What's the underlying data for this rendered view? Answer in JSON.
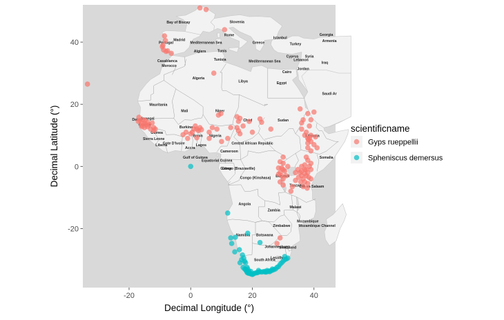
{
  "chart_data": {
    "type": "scatter",
    "title": "",
    "xlabel": "Decimal Longitude (°)",
    "ylabel": "Decimal Latitude (°)",
    "xlim": [
      -35,
      47
    ],
    "ylim": [
      -39,
      52
    ],
    "x_ticks": [
      -20,
      0,
      20,
      40
    ],
    "y_ticks": [
      -20,
      0,
      20,
      40
    ],
    "x_tick_labels": [
      "-20",
      "0",
      "20",
      "40"
    ],
    "y_tick_labels": [
      "-20",
      "0",
      "20",
      "40"
    ],
    "background": "basemap",
    "legend": {
      "title": "scientificname",
      "position": "right",
      "entries": [
        {
          "name": "Gyps rueppellii",
          "color": "#F8766D"
        },
        {
          "name": "Spheniscus demersus",
          "color": "#00BFC4"
        }
      ]
    },
    "series": [
      {
        "name": "Gyps rueppellii",
        "color": "#F8766D",
        "points": [
          [
            -8.5,
            42
          ],
          [
            -8.2,
            40.5
          ],
          [
            -9,
            39
          ],
          [
            -9.2,
            38.5
          ],
          [
            -8.8,
            37.5
          ],
          [
            -8,
            37
          ],
          [
            -7.5,
            37.2
          ],
          [
            -6.3,
            36.4
          ],
          [
            3,
            51
          ],
          [
            5,
            50.5
          ],
          [
            11,
            44
          ],
          [
            7.5,
            30
          ],
          [
            -33.5,
            26.5
          ],
          [
            -17,
            14.5
          ],
          [
            -16.8,
            15.8
          ],
          [
            -16.5,
            14.8
          ],
          [
            -16,
            14
          ],
          [
            -16,
            13.2
          ],
          [
            -15.5,
            15
          ],
          [
            -15,
            13.8
          ],
          [
            -15,
            12.5
          ],
          [
            -14.8,
            14.8
          ],
          [
            -14.5,
            13.5
          ],
          [
            -14,
            12.8
          ],
          [
            -13.5,
            13.4
          ],
          [
            -13,
            12
          ],
          [
            -12.5,
            14
          ],
          [
            -12,
            11.5
          ],
          [
            -12,
            12.5
          ],
          [
            -11.5,
            12
          ],
          [
            -14,
            14.2
          ],
          [
            -15.8,
            12.8
          ],
          [
            -2.5,
            10.2
          ],
          [
            -1.5,
            11
          ],
          [
            0.5,
            11
          ],
          [
            1,
            12
          ],
          [
            1.5,
            13
          ],
          [
            2,
            12
          ],
          [
            2.5,
            11.5
          ],
          [
            3,
            12.5
          ],
          [
            3.5,
            11.8
          ],
          [
            0,
            10.5
          ],
          [
            -1,
            9
          ],
          [
            2,
            9.2
          ],
          [
            6,
            11
          ],
          [
            7,
            12.5
          ],
          [
            8.5,
            12
          ],
          [
            9,
            16.5
          ],
          [
            9.8,
            17
          ],
          [
            6,
            9
          ],
          [
            15.5,
            14.5
          ],
          [
            16,
            15.5
          ],
          [
            15,
            16
          ],
          [
            17,
            13
          ],
          [
            15,
            12.5
          ],
          [
            16,
            10.5
          ],
          [
            20,
            11
          ],
          [
            19,
            14.5
          ],
          [
            23,
            14.2
          ],
          [
            22.5,
            15.3
          ],
          [
            15.5,
            11.5
          ],
          [
            13,
            12.5
          ],
          [
            10,
            8
          ],
          [
            12,
            9
          ],
          [
            26,
            12
          ],
          [
            35.5,
            18.5
          ],
          [
            38,
            17
          ],
          [
            40,
            17.5
          ],
          [
            39,
            15
          ],
          [
            36,
            14
          ],
          [
            36,
            12
          ],
          [
            37,
            10
          ],
          [
            38,
            9
          ],
          [
            39,
            8
          ],
          [
            40,
            7
          ],
          [
            41,
            6
          ],
          [
            38,
            6
          ],
          [
            39,
            10
          ],
          [
            38.2,
            8.6
          ],
          [
            37.5,
            11
          ],
          [
            38.5,
            13
          ],
          [
            38.6,
            9.1
          ],
          [
            38,
            7.5
          ],
          [
            39,
            5
          ],
          [
            36.5,
            15
          ],
          [
            40.5,
            9.5
          ],
          [
            37.5,
            3
          ],
          [
            38,
            2
          ],
          [
            39,
            1
          ],
          [
            37,
            0.5
          ],
          [
            36,
            0
          ],
          [
            37,
            -1
          ],
          [
            38,
            -2
          ],
          [
            37.5,
            -3
          ],
          [
            36.5,
            -4
          ],
          [
            35.5,
            -2
          ],
          [
            34.8,
            -1
          ],
          [
            36,
            -1.5
          ],
          [
            37,
            -2.3
          ],
          [
            38.5,
            0
          ],
          [
            39,
            -1
          ],
          [
            36,
            -3
          ],
          [
            37.5,
            -1
          ],
          [
            38.3,
            -3.5
          ],
          [
            39,
            -4
          ],
          [
            37,
            -5
          ],
          [
            36.5,
            -6.5
          ],
          [
            37.8,
            -7
          ],
          [
            38,
            -5.5
          ],
          [
            35.7,
            -5
          ],
          [
            34,
            -2
          ],
          [
            35,
            -3.5
          ],
          [
            29,
            -2
          ],
          [
            30,
            -1
          ],
          [
            29.5,
            -3
          ],
          [
            30,
            -4
          ],
          [
            29,
            -5
          ],
          [
            28.5,
            -0.5
          ],
          [
            30,
            1
          ],
          [
            31,
            -3
          ],
          [
            29,
            1.5
          ],
          [
            30.5,
            -1.5
          ],
          [
            30,
            3
          ],
          [
            28.5,
            -2.5
          ],
          [
            29.5,
            -0.5
          ],
          [
            31.5,
            0
          ],
          [
            30,
            -6
          ],
          [
            34,
            -4.5
          ],
          [
            32.5,
            -8
          ],
          [
            33,
            -6.5
          ],
          [
            28,
            -24.8
          ],
          [
            29,
            -23
          ]
        ]
      },
      {
        "name": "Spheniscus demersus",
        "color": "#00BFC4",
        "points": [
          [
            0,
            0
          ],
          [
            12,
            -15
          ],
          [
            18.5,
            -21.5
          ],
          [
            13,
            -23
          ],
          [
            14.5,
            -22.8
          ],
          [
            13.3,
            -24.8
          ],
          [
            14.3,
            -27.5
          ],
          [
            15.8,
            -26.8
          ],
          [
            22.5,
            -24.5
          ],
          [
            31.5,
            -29.5
          ],
          [
            30.5,
            -29
          ],
          [
            16,
            -31
          ],
          [
            17,
            -32.5
          ],
          [
            17.5,
            -33
          ],
          [
            18,
            -33.5
          ],
          [
            18.5,
            -34
          ],
          [
            19,
            -34.3
          ],
          [
            19.5,
            -34.6
          ],
          [
            20,
            -34.8
          ],
          [
            18.2,
            -33.9
          ],
          [
            18.4,
            -34.2
          ],
          [
            18.8,
            -34.4
          ],
          [
            20.5,
            -34.5
          ],
          [
            21,
            -34.3
          ],
          [
            21.5,
            -34.2
          ],
          [
            22,
            -34
          ],
          [
            22.5,
            -33.9
          ],
          [
            23,
            -34
          ],
          [
            23.5,
            -33.9
          ],
          [
            24,
            -33.8
          ],
          [
            24.5,
            -34
          ],
          [
            25,
            -33.8
          ],
          [
            25.5,
            -33.7
          ],
          [
            26,
            -33.6
          ],
          [
            26.5,
            -33.4
          ],
          [
            27,
            -33.2
          ],
          [
            27.5,
            -33
          ],
          [
            28,
            -32.5
          ],
          [
            28.5,
            -32.2
          ],
          [
            29,
            -31.5
          ],
          [
            29.5,
            -31
          ],
          [
            30,
            -30.5
          ],
          [
            30.5,
            -30
          ],
          [
            31,
            -29.8
          ],
          [
            18.3,
            -32.5
          ],
          [
            17.8,
            -31
          ],
          [
            17.2,
            -29.5
          ],
          [
            16.8,
            -28.5
          ],
          [
            18.5,
            -33
          ],
          [
            19.5,
            -33.8
          ],
          [
            22,
            -33.5
          ],
          [
            24.8,
            -33.5
          ],
          [
            26.5,
            -33
          ],
          [
            17.8,
            -33.2
          ],
          [
            18.6,
            -34.1
          ],
          [
            18.9,
            -33.7
          ],
          [
            19.3,
            -34.4
          ],
          [
            20.2,
            -34.6
          ],
          [
            21.8,
            -34.1
          ],
          [
            24.2,
            -34
          ],
          [
            25.6,
            -33.9
          ],
          [
            16.5,
            -30
          ],
          [
            17.5,
            -30.5
          ]
        ]
      }
    ],
    "map_labels": [
      {
        "text": "Bay of Biscay",
        "lon": -4,
        "lat": 46
      },
      {
        "text": "Slovenia",
        "lon": 15,
        "lat": 46.1
      },
      {
        "text": "Georgia",
        "lon": 44,
        "lat": 42
      },
      {
        "text": "Portugal",
        "lon": -8,
        "lat": 39.5
      },
      {
        "text": "Madrid",
        "lon": -3.7,
        "lat": 40.4
      },
      {
        "text": "Mediterranean Sea",
        "lon": 5,
        "lat": 39.5
      },
      {
        "text": "Rome",
        "lon": 12.5,
        "lat": 41.9
      },
      {
        "text": "Greece",
        "lon": 22,
        "lat": 39.5
      },
      {
        "text": "Istanbul",
        "lon": 29,
        "lat": 41
      },
      {
        "text": "Armenia",
        "lon": 45,
        "lat": 40
      },
      {
        "text": "Turkey",
        "lon": 34,
        "lat": 39
      },
      {
        "text": "Algiers",
        "lon": 3,
        "lat": 36.7
      },
      {
        "text": "Tunis",
        "lon": 10.2,
        "lat": 36.8
      },
      {
        "text": "Casablanca",
        "lon": -7.6,
        "lat": 33.6
      },
      {
        "text": "Morocco",
        "lon": -7,
        "lat": 32
      },
      {
        "text": "Tunisia",
        "lon": 9.5,
        "lat": 34
      },
      {
        "text": "Mediterranean Sea",
        "lon": 24,
        "lat": 33.5
      },
      {
        "text": "Cyprus",
        "lon": 33,
        "lat": 35
      },
      {
        "text": "Syria",
        "lon": 38.5,
        "lat": 35
      },
      {
        "text": "Iraq",
        "lon": 43.5,
        "lat": 33
      },
      {
        "text": "Lebanon",
        "lon": 35.8,
        "lat": 33.9
      },
      {
        "text": "Jordan",
        "lon": 36.5,
        "lat": 31
      },
      {
        "text": "Cairo",
        "lon": 31.2,
        "lat": 30
      },
      {
        "text": "Algeria",
        "lon": 2.5,
        "lat": 28
      },
      {
        "text": "Libya",
        "lon": 17,
        "lat": 27
      },
      {
        "text": "Egypt",
        "lon": 29.5,
        "lat": 26.5
      },
      {
        "text": "Saudi Ar",
        "lon": 45,
        "lat": 23
      },
      {
        "text": "Mauritania",
        "lon": -10.5,
        "lat": 19.5
      },
      {
        "text": "Mali",
        "lon": -2,
        "lat": 17.5
      },
      {
        "text": "Niger",
        "lon": 9.5,
        "lat": 17.5
      },
      {
        "text": "Chad",
        "lon": 18.5,
        "lat": 14.5
      },
      {
        "text": "Sudan",
        "lon": 30,
        "lat": 14.5
      },
      {
        "text": "Dakar",
        "lon": -17.4,
        "lat": 14.7
      },
      {
        "text": "Senegal",
        "lon": -14,
        "lat": 15
      },
      {
        "text": "Guinea",
        "lon": -15,
        "lat": 13
      },
      {
        "text": "Guinea",
        "lon": -11,
        "lat": 10.5
      },
      {
        "text": "Sierra Leone",
        "lon": -12,
        "lat": 8.5
      },
      {
        "text": "Liberia",
        "lon": -9.5,
        "lat": 6.5
      },
      {
        "text": "Cote D'Ivoire",
        "lon": -5.5,
        "lat": 7
      },
      {
        "text": "Burkina",
        "lon": -1.5,
        "lat": 12.3
      },
      {
        "text": "Benin",
        "lon": 2.3,
        "lat": 9.5
      },
      {
        "text": "Lagos",
        "lon": 3.4,
        "lat": 6.5
      },
      {
        "text": "Nigeria",
        "lon": 8,
        "lat": 9.5
      },
      {
        "text": "Accra",
        "lon": -0.2,
        "lat": 5.6
      },
      {
        "text": "Gulf of Guinea",
        "lon": 1.5,
        "lat": 2.5
      },
      {
        "text": "Cameroon",
        "lon": 12.5,
        "lat": 4.5
      },
      {
        "text": "Central African Republic",
        "lon": 20,
        "lat": 7
      },
      {
        "text": "Ethiopia",
        "lon": 39.5,
        "lat": 9.5
      },
      {
        "text": "Somalia",
        "lon": 44,
        "lat": 2.5
      },
      {
        "text": "Equatorial Guinea",
        "lon": 8.5,
        "lat": 1.5
      },
      {
        "text": "Gabon",
        "lon": 11.5,
        "lat": -1
      },
      {
        "text": "Congo (Brazzaville)",
        "lon": 15.5,
        "lat": -1
      },
      {
        "text": "Congo (Kinshasa)",
        "lon": 21,
        "lat": -4
      },
      {
        "text": "Burundi",
        "lon": 29.8,
        "lat": -3.5
      },
      {
        "text": "Tanzania",
        "lon": 34.5,
        "lat": -6.5
      },
      {
        "text": "Dar es Salaam",
        "lon": 39.3,
        "lat": -6.8
      },
      {
        "text": "Angola",
        "lon": 17.5,
        "lat": -12.5
      },
      {
        "text": "Zambia",
        "lon": 27,
        "lat": -14.5
      },
      {
        "text": "Malawi",
        "lon": 34,
        "lat": -13.5
      },
      {
        "text": "Mozambique",
        "lon": 38,
        "lat": -18
      },
      {
        "text": "Mozambique Channel",
        "lon": 41,
        "lat": -19.5
      },
      {
        "text": "Zimbabwe",
        "lon": 29.5,
        "lat": -19.5
      },
      {
        "text": "Namibia",
        "lon": 17,
        "lat": -22.5
      },
      {
        "text": "Botswana",
        "lon": 24,
        "lat": -22.5
      },
      {
        "text": "Johannesburg",
        "lon": 28,
        "lat": -26.2
      },
      {
        "text": "Swaziland",
        "lon": 31.5,
        "lat": -26.5
      },
      {
        "text": "South Africa",
        "lon": 24,
        "lat": -30.5
      },
      {
        "text": "Lesotho",
        "lon": 28.2,
        "lat": -29.8
      }
    ]
  }
}
